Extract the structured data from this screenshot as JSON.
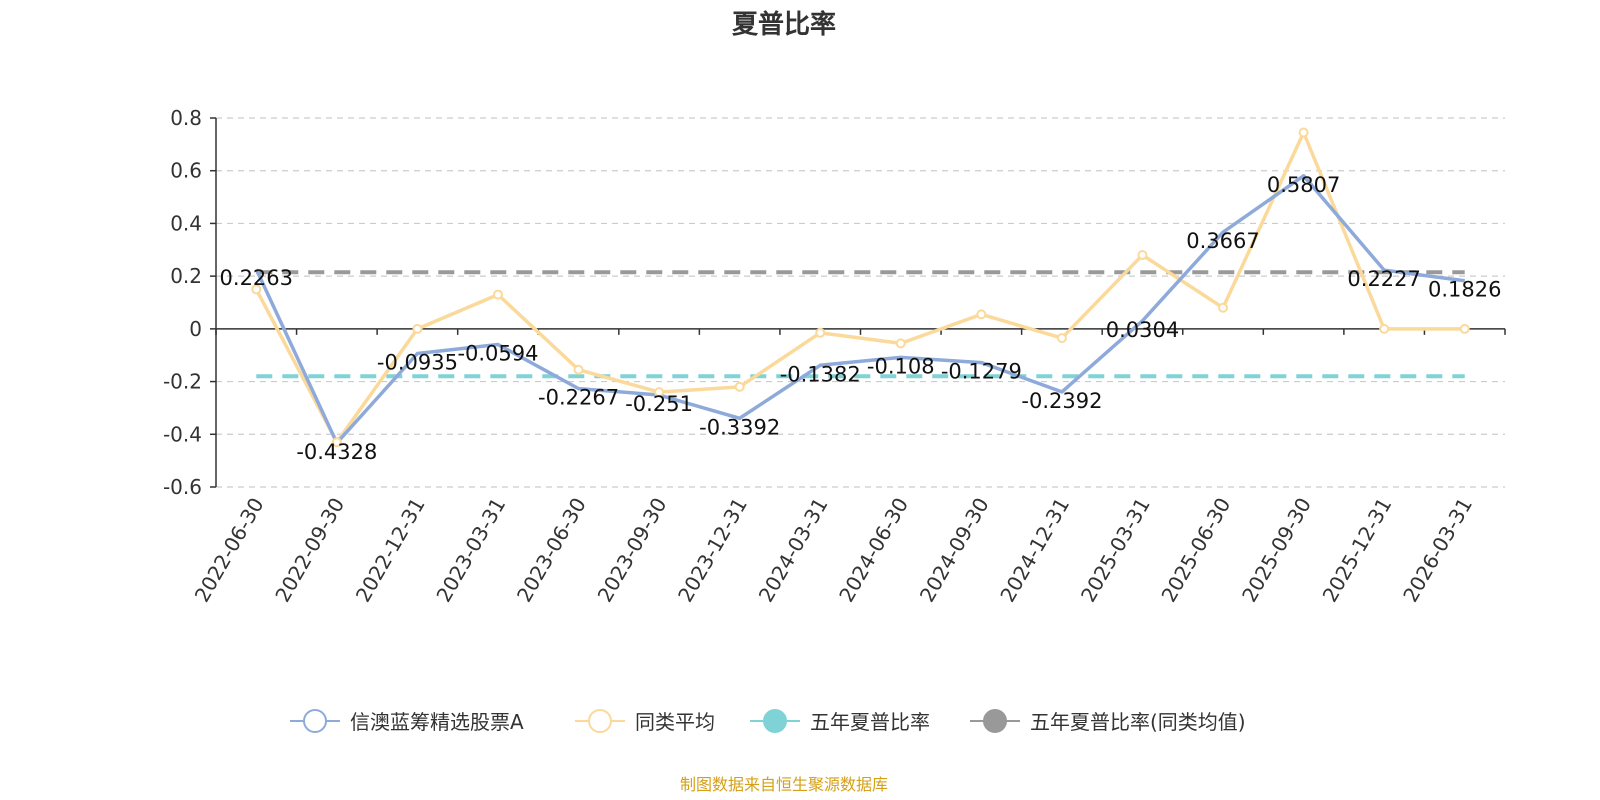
{
  "chart_data": {
    "type": "line",
    "title": "夏普比率",
    "categories": [
      "2022-06-30",
      "2022-09-30",
      "2022-12-31",
      "2023-03-31",
      "2023-06-30",
      "2023-09-30",
      "2023-12-31",
      "2024-03-31",
      "2024-06-30",
      "2024-09-30",
      "2024-12-31",
      "2025-03-31",
      "2025-06-30",
      "2025-09-30",
      "2025-12-31",
      "2026-03-31"
    ],
    "ylim": [
      -0.6,
      0.8
    ],
    "yticks": [
      "0.8",
      "0.6",
      "0.4",
      "0.2",
      "0",
      "-0.2",
      "-0.4",
      "-0.6"
    ],
    "ytick_values": [
      0.8,
      0.6,
      0.4,
      0.2,
      0,
      -0.2,
      -0.4,
      -0.6
    ],
    "grid": true,
    "legend_position": "bottom",
    "series": [
      {
        "name": "信澳蓝筹精选股票A",
        "color": "#8eaadb",
        "values": [
          0.2263,
          -0.4328,
          -0.0935,
          -0.0594,
          -0.2267,
          -0.251,
          -0.3392,
          -0.1382,
          -0.108,
          -0.1279,
          -0.2392,
          0.0304,
          0.3667,
          0.5807,
          0.2227,
          0.1826
        ],
        "labels": [
          "0.2263",
          "-0.4328",
          "-0.0935",
          "-0.0594",
          "-0.2267",
          "-0.251",
          "-0.3392",
          "-0.1382",
          "-0.108",
          "-0.1279",
          "-0.2392",
          "0.0304",
          "0.3667",
          "0.5807",
          "0.2227",
          "0.1826"
        ]
      },
      {
        "name": "同类平均",
        "color": "#fbd99a",
        "values": [
          0.15,
          -0.43,
          0.0,
          0.13,
          -0.155,
          -0.24,
          -0.22,
          -0.015,
          -0.055,
          0.055,
          -0.035,
          0.28,
          0.08,
          0.745,
          0.0,
          0.0
        ]
      },
      {
        "name": "五年夏普比率",
        "color": "#7fd3d6",
        "dashed": true,
        "value": -0.18
      },
      {
        "name": "五年夏普比率(同类均值)",
        "color": "#999999",
        "dashed": true,
        "value": 0.215
      }
    ]
  },
  "footer": {
    "source": "制图数据来自恒生聚源数据库"
  }
}
